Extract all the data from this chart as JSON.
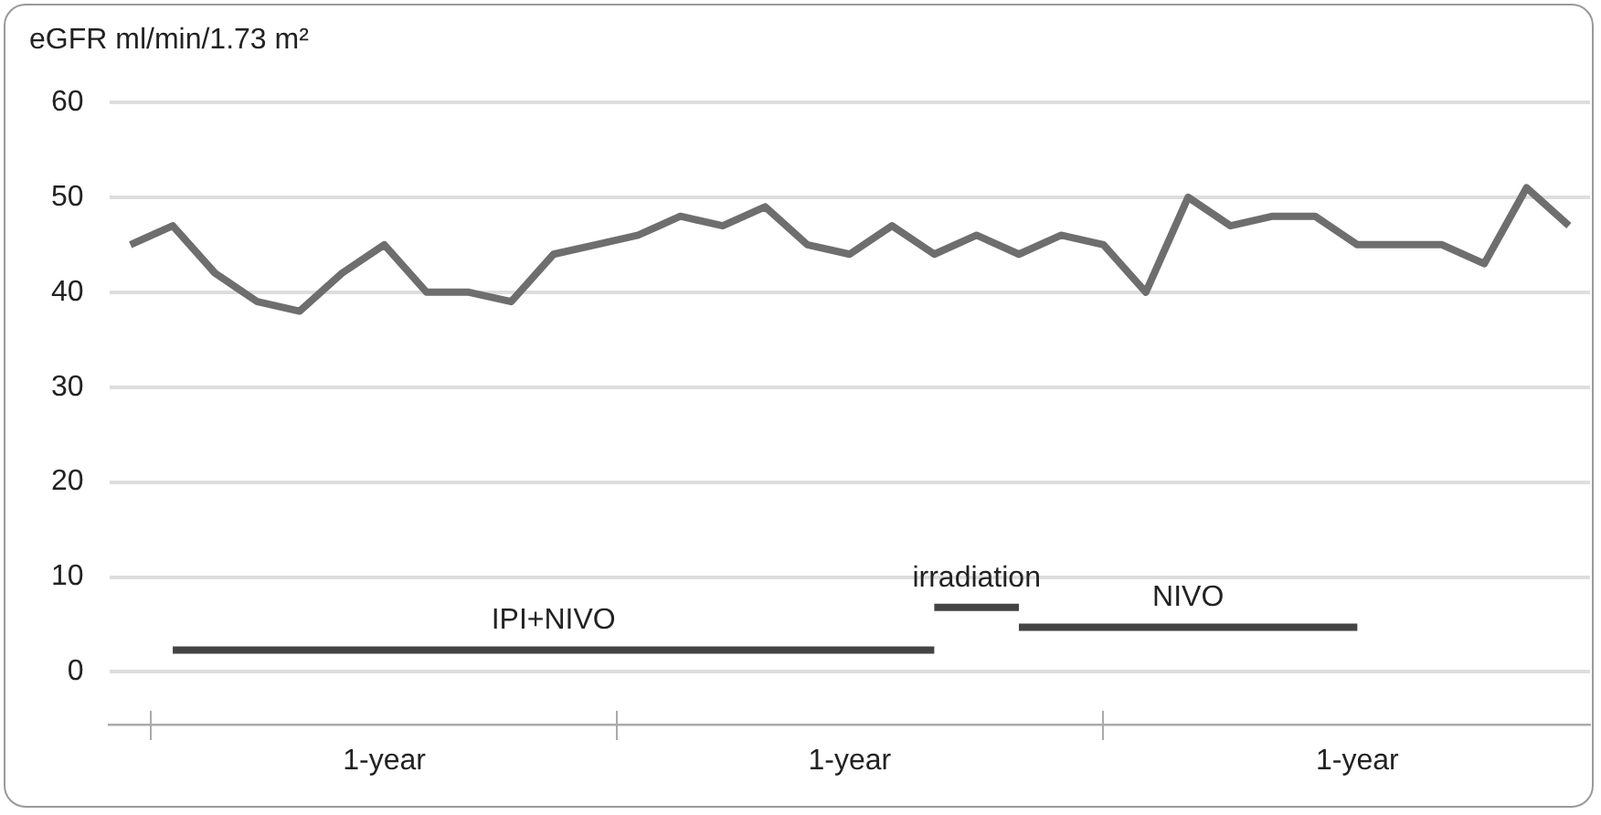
{
  "chart_data": {
    "type": "line",
    "ylabel": "eGFR ml/min/1.73 m²",
    "categories": [
      null,
      null,
      null,
      null,
      null,
      null,
      "1-year",
      null,
      null,
      null,
      null,
      null,
      null,
      null,
      null,
      null,
      null,
      "1-year",
      null,
      null,
      null,
      null,
      null,
      null,
      null,
      null,
      null,
      null,
      null,
      "1-year",
      null,
      null,
      null,
      null,
      null
    ],
    "ylim": [
      -5.6,
      60
    ],
    "yticks": [
      0,
      10,
      20,
      30,
      40,
      50,
      60
    ],
    "series": [
      {
        "color": "#6e6e6e",
        "values": [
          45,
          47,
          42,
          39,
          38,
          42,
          45,
          40,
          40,
          39,
          44,
          45,
          46,
          48,
          47,
          49,
          45,
          44,
          47,
          44,
          46,
          44,
          46,
          45,
          40,
          50,
          47,
          48,
          48,
          45,
          45,
          45,
          43,
          51,
          47
        ]
      },
      {
        "name": "IPI+NIVO",
        "color": "#444444",
        "values": [
          null,
          2.3,
          2.3,
          2.3,
          2.3,
          2.3,
          2.3,
          2.3,
          2.3,
          2.3,
          2.3,
          2.3,
          2.3,
          2.3,
          2.3,
          2.3,
          2.3,
          2.3,
          2.3,
          2.3,
          null,
          null,
          null,
          null,
          null,
          null,
          null,
          null,
          null,
          null,
          null,
          null,
          null,
          null,
          null
        ]
      },
      {
        "name": "irradiation",
        "color": "#444444",
        "values": [
          null,
          null,
          null,
          null,
          null,
          null,
          null,
          null,
          null,
          null,
          null,
          null,
          null,
          null,
          null,
          null,
          null,
          null,
          null,
          6.8,
          6.8,
          6.8,
          null,
          null,
          null,
          null,
          null,
          null,
          null,
          null,
          null,
          null,
          null,
          null,
          null
        ]
      },
      {
        "name": "NIVO",
        "color": "#444444",
        "values": [
          null,
          null,
          null,
          null,
          null,
          null,
          null,
          null,
          null,
          null,
          null,
          null,
          null,
          null,
          null,
          null,
          null,
          null,
          null,
          null,
          null,
          4.7,
          4.7,
          4.7,
          4.7,
          4.7,
          4.7,
          4.7,
          4.7,
          4.7,
          null,
          null,
          null,
          null,
          null
        ]
      }
    ],
    "grid": "y",
    "legend": false,
    "marker": "none",
    "line_style": "solid"
  }
}
